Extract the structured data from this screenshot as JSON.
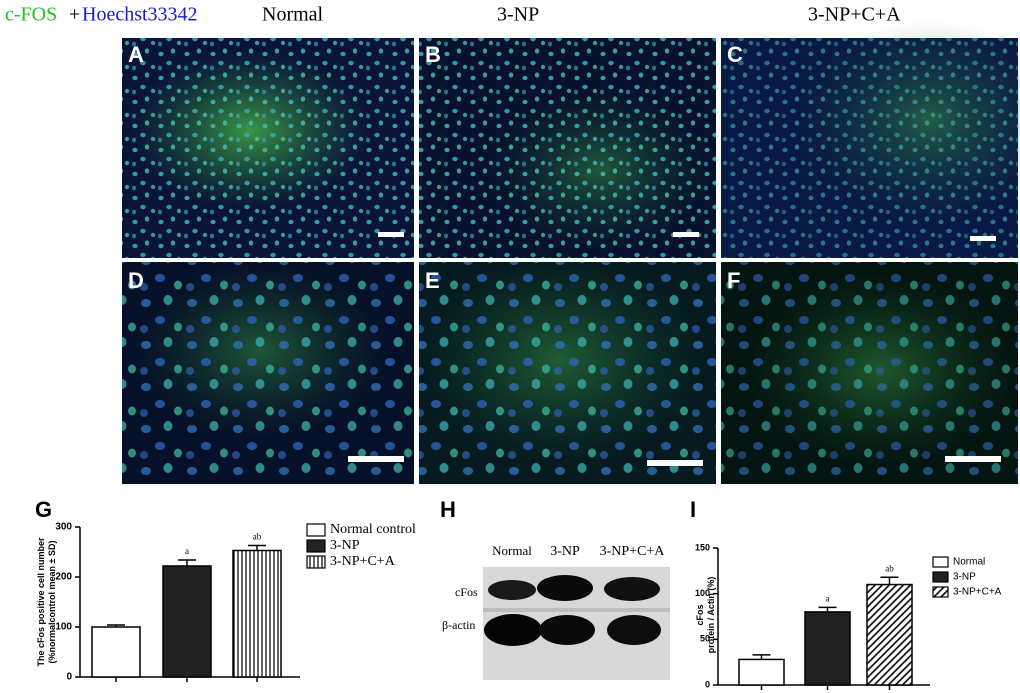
{
  "header": {
    "stain_cfos": "c-FOS",
    "plus": "+",
    "stain_hoechst": "Hoechst33342",
    "columns": [
      "Normal",
      "3-NP",
      "3-NP+C+A"
    ]
  },
  "panels": [
    "A",
    "B",
    "C",
    "D",
    "E",
    "F"
  ],
  "blot": {
    "letter": "H",
    "lanes": [
      "Normal",
      "3-NP",
      "3-NP+C+A"
    ],
    "rows": [
      "cFos",
      "β-actin"
    ]
  },
  "chart_data": [
    {
      "type": "bar",
      "letter": "G",
      "ylabel": [
        "The cFos positive cell number",
        "(%normalcontrol mean ± SD)"
      ],
      "categories": [
        "Normal control",
        "3-NP",
        "3-NP+C+A"
      ],
      "values": [
        100,
        222,
        253
      ],
      "errors": [
        4,
        12,
        10
      ],
      "annotations": [
        null,
        "a",
        "ab"
      ],
      "colors": [
        "#ffffff",
        "#222222",
        "#ffffff"
      ],
      "hatch": [
        null,
        null,
        "vertical"
      ],
      "ylim": [
        0,
        300
      ],
      "yticks": [
        0,
        100,
        200,
        300
      ]
    },
    {
      "type": "bar",
      "letter": "I",
      "ylabel": [
        "cFos",
        "protein / Actin (%)"
      ],
      "categories": [
        "Normal",
        "3-NP",
        "3-NP+C+A"
      ],
      "values": [
        28,
        80,
        110
      ],
      "errors": [
        5,
        5,
        8
      ],
      "annotations": [
        null,
        "a",
        "ab"
      ],
      "colors": [
        "#ffffff",
        "#222222",
        "#ffffff"
      ],
      "hatch": [
        null,
        null,
        "diagonal"
      ],
      "ylim": [
        0,
        150
      ],
      "yticks": [
        0,
        50,
        100,
        150
      ]
    }
  ]
}
